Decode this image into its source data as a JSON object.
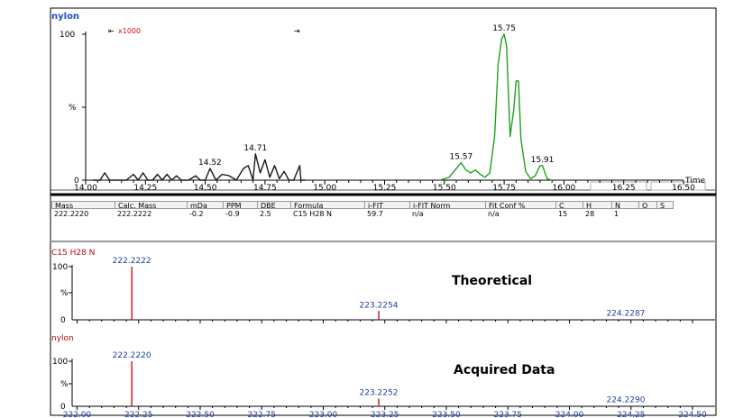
{
  "colors": {
    "chromatogram": "#1a1a1a",
    "peaks_green": "#22a022",
    "spectrum": "#cc1111",
    "title_blue": "#1f4fbf",
    "formula_red": "#b01010"
  },
  "chromatogram": {
    "title": "nylon",
    "zoom_label": "x1000",
    "y_top_label": "100",
    "y_mid_label": "%",
    "y_bottom_label": "0",
    "x_axis_label": "Time"
  },
  "results_table": {
    "headers": [
      "Mass",
      "Calc. Mass",
      "mDa",
      "PPM",
      "DBE",
      "Formula",
      "i-FIT",
      "i-FIT Norm",
      "Fit Conf %",
      "C",
      "H",
      "N",
      "O",
      "S"
    ],
    "row": [
      "222.2220",
      "222.2222",
      "-0.2",
      "-0.9",
      "2.5",
      "C15  H28  N",
      "59.7",
      "n/a",
      "n/a",
      "15",
      "28",
      "1",
      "",
      ""
    ]
  },
  "theoretical": {
    "title": "C15  H28  N",
    "annotation": "Theoretical",
    "y_top_label": "100",
    "y_mid_label": "%",
    "y_bottom_label": "0"
  },
  "acquired": {
    "title": "nylon",
    "annotation": "Acquired Data",
    "y_top_label": "100",
    "y_mid_label": "%",
    "y_bottom_label": "0"
  },
  "chart_data": [
    {
      "type": "line",
      "title": "nylon",
      "xlabel": "Time",
      "ylabel": "%",
      "xlim": [
        14.0,
        16.5
      ],
      "ylim": [
        0,
        100
      ],
      "x_ticks": [
        "14.00",
        "14.25",
        "14.50",
        "14.75",
        "15.00",
        "15.25",
        "15.50",
        "15.75",
        "16.00",
        "16.25",
        "16.50"
      ],
      "series": [
        {
          "name": "trace",
          "color": "#1a1a1a",
          "x": [
            14.03,
            14.06,
            14.08,
            14.1,
            14.13,
            14.17,
            14.2,
            14.22,
            14.24,
            14.26,
            14.28,
            14.3,
            14.32,
            14.34,
            14.36,
            14.38,
            14.4,
            14.43,
            14.46,
            14.48,
            14.5,
            14.52,
            14.545,
            14.57,
            14.6,
            14.63,
            14.66,
            14.68,
            14.7,
            14.71,
            14.73,
            14.75,
            14.77,
            14.79,
            14.81,
            14.83,
            14.85,
            14.87,
            14.895,
            14.9,
            14.92
          ],
          "y": [
            0,
            0,
            5,
            0,
            0,
            0,
            4,
            0,
            5,
            0,
            0,
            4,
            0,
            4,
            0,
            3,
            0,
            0,
            3,
            0,
            0,
            8,
            0,
            4,
            3,
            0,
            8,
            10,
            0,
            18,
            5,
            14,
            2,
            10,
            1,
            6,
            0,
            0,
            10,
            0,
            0
          ]
        },
        {
          "name": "green",
          "color": "#22a022",
          "x": [
            15.48,
            15.52,
            15.55,
            15.57,
            15.59,
            15.61,
            15.63,
            15.65,
            15.67,
            15.69,
            15.71,
            15.725,
            15.74,
            15.75,
            15.76,
            15.775,
            15.79,
            15.8,
            15.81,
            15.82,
            15.84,
            15.86,
            15.88,
            15.9,
            15.91,
            15.93,
            15.95
          ],
          "y": [
            0,
            2,
            8,
            12,
            7,
            5,
            7,
            4,
            2,
            5,
            30,
            80,
            97,
            100,
            92,
            30,
            48,
            68,
            68,
            28,
            6,
            1,
            3,
            10,
            10,
            1,
            0
          ]
        }
      ],
      "annotations": [
        {
          "x": 14.52,
          "y": 8,
          "label": "14.52"
        },
        {
          "x": 14.71,
          "y": 18,
          "label": "14.71"
        },
        {
          "x": 15.57,
          "y": 12,
          "label": "15.57"
        },
        {
          "x": 15.75,
          "y": 100,
          "label": "15.75"
        },
        {
          "x": 15.91,
          "y": 10,
          "label": "15.91"
        }
      ]
    },
    {
      "type": "bar",
      "title": "C15  H28  N",
      "annotation": "Theoretical",
      "xlim": [
        222.0,
        224.5
      ],
      "ylim": [
        0,
        100
      ],
      "x": [
        222.2222,
        223.2254,
        224.2287
      ],
      "values": [
        100,
        16.5,
        1.2
      ],
      "labels": [
        "222.2222",
        "223.2254",
        "224.2287"
      ]
    },
    {
      "type": "bar",
      "title": "nylon",
      "annotation": "Acquired Data",
      "xlim": [
        222.0,
        224.5
      ],
      "ylim": [
        0,
        100
      ],
      "x_ticks": [
        "222.00",
        "222.25",
        "222.50",
        "222.75",
        "223.00",
        "223.25",
        "223.50",
        "223.75",
        "224.00",
        "224.25",
        "224.50"
      ],
      "x": [
        222.222,
        223.2252,
        224.229
      ],
      "values": [
        100,
        17,
        1.5
      ],
      "labels": [
        "222.2220",
        "223.2252",
        "224.2290"
      ]
    }
  ]
}
